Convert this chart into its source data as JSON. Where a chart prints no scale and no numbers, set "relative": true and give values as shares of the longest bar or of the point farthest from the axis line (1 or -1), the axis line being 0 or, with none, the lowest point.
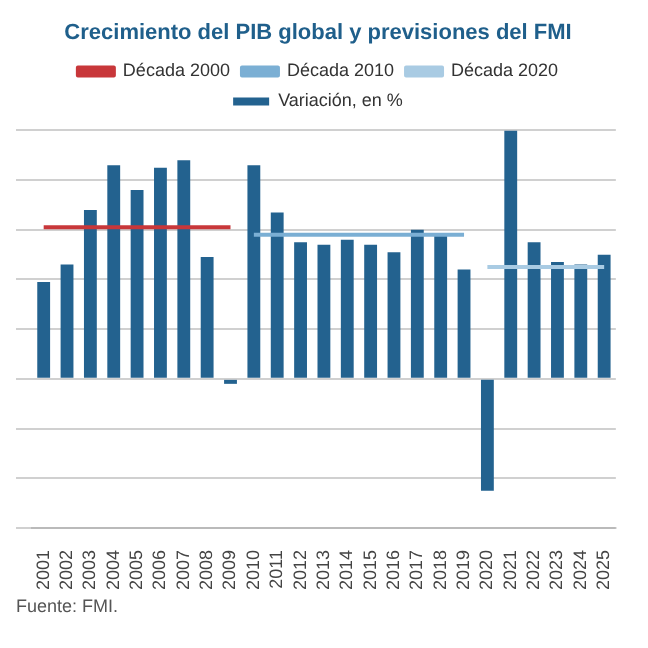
{
  "chart_data": {
    "type": "bar",
    "title": "Crecimiento del PIB global y previsiones del FMI",
    "relative": true,
    "grid": "y",
    "legend": "top",
    "categories": [
      "2001",
      "2002",
      "2003",
      "2004",
      "2005",
      "2006",
      "2007",
      "2008",
      "2009",
      "2010",
      "2011",
      "2012",
      "2013",
      "2014",
      "2015",
      "2016",
      "2017",
      "2018",
      "2019",
      "2020",
      "2021",
      "2022",
      "2023",
      "2024",
      "2025"
    ],
    "series": [
      {
        "name": "Variación, en %",
        "color": "#23628f",
        "values": [
          0.39,
          0.46,
          0.68,
          0.86,
          0.76,
          0.85,
          0.88,
          0.49,
          -0.02,
          0.86,
          0.67,
          0.55,
          0.54,
          0.56,
          0.54,
          0.51,
          0.6,
          0.58,
          0.44,
          -0.45,
          1,
          0.55,
          0.47,
          0.46,
          0.5
        ]
      },
      {
        "name": "Década 2000",
        "type": "line",
        "color": "#c8373a",
        "values": [
          0.61,
          0.61,
          0.61,
          0.61,
          0.61,
          0.61,
          0.61,
          0.61,
          0.61,
          null,
          null,
          null,
          null,
          null,
          null,
          null,
          null,
          null,
          null,
          null,
          null,
          null,
          null,
          null,
          null
        ]
      },
      {
        "name": "Década 2010",
        "type": "line",
        "color": "#7bafd4",
        "values": [
          null,
          null,
          null,
          null,
          null,
          null,
          null,
          null,
          null,
          0.58,
          0.58,
          0.58,
          0.58,
          0.58,
          0.58,
          0.58,
          0.58,
          0.58,
          0.58,
          null,
          null,
          null,
          null,
          null,
          null
        ]
      },
      {
        "name": "Década 2020",
        "type": "line",
        "color": "#a9cbe3",
        "values": [
          null,
          null,
          null,
          null,
          null,
          null,
          null,
          null,
          null,
          null,
          null,
          null,
          null,
          null,
          null,
          null,
          null,
          null,
          null,
          0.45,
          0.45,
          0.45,
          0.45,
          0.45,
          0.45
        ]
      }
    ],
    "annotations": [
      "Fuente: FMI."
    ]
  }
}
